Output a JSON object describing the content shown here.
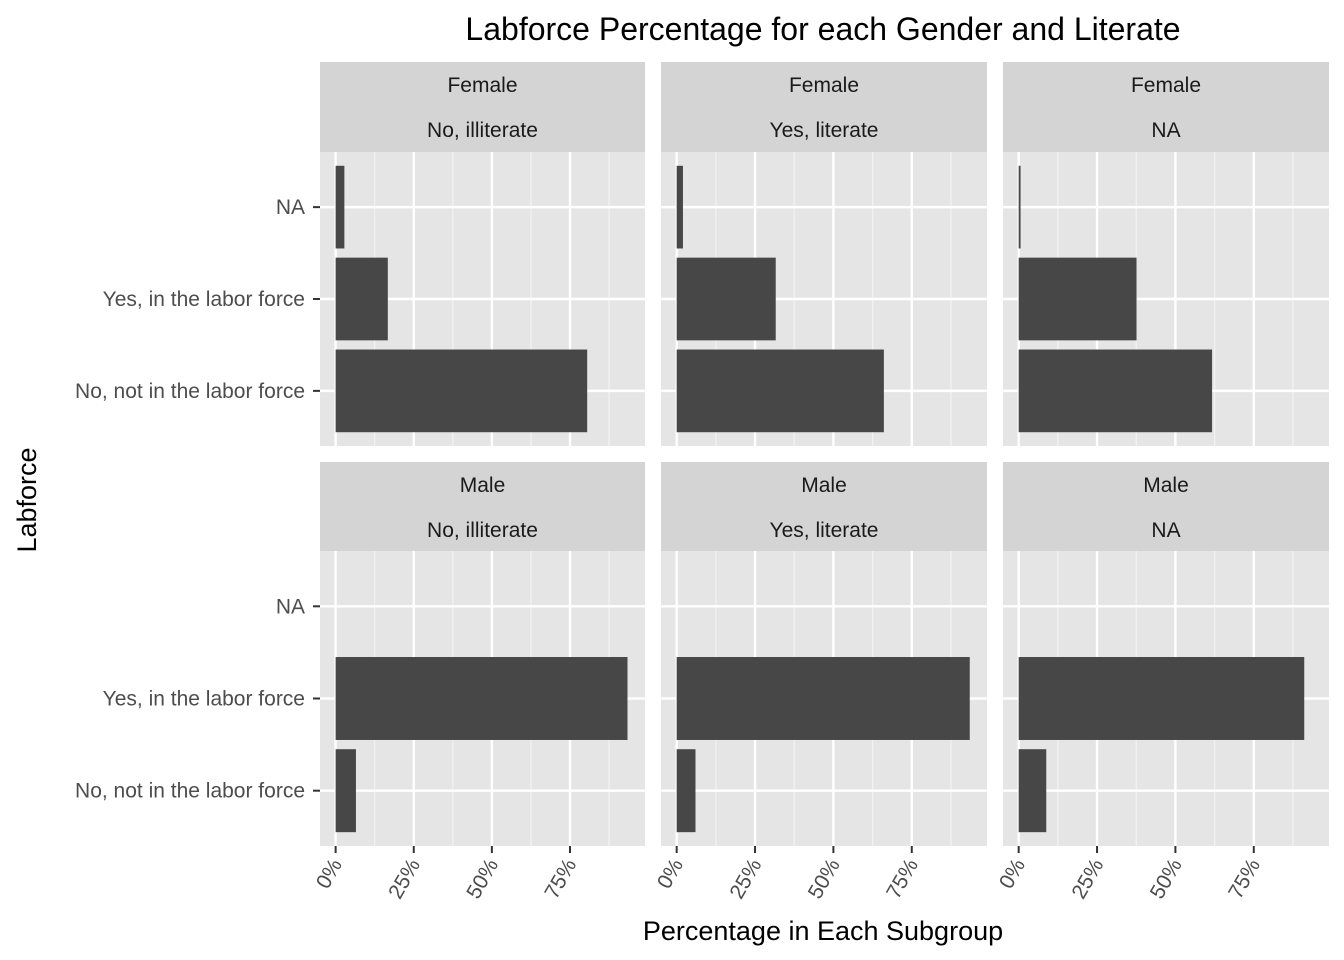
{
  "chart_data": {
    "type": "bar",
    "orientation": "horizontal",
    "title": "Labforce Percentage for each Gender and Literate",
    "xlabel": "Percentage in Each Subgroup",
    "ylabel": "Labforce",
    "xlim": [
      0,
      1
    ],
    "x_ticks": [
      {
        "value": 0,
        "label": "0%"
      },
      {
        "value": 0.25,
        "label": "25%"
      },
      {
        "value": 0.5,
        "label": "50%"
      },
      {
        "value": 0.75,
        "label": "75%"
      }
    ],
    "categories": [
      "No, not in the labor force",
      "Yes, in the labor force",
      "NA"
    ],
    "grid": true,
    "panels": [
      {
        "row_label": "Female",
        "col_label": "No, illiterate",
        "values": [
          0.805,
          0.167,
          0.028
        ]
      },
      {
        "row_label": "Female",
        "col_label": "Yes, literate",
        "values": [
          0.661,
          0.316,
          0.02
        ]
      },
      {
        "row_label": "Female",
        "col_label": "NA",
        "values": [
          0.617,
          0.376,
          0.006
        ]
      },
      {
        "row_label": "Male",
        "col_label": "No, illiterate",
        "values": [
          0.065,
          0.934,
          0.0
        ]
      },
      {
        "row_label": "Male",
        "col_label": "Yes, literate",
        "values": [
          0.06,
          0.935,
          0.0
        ]
      },
      {
        "row_label": "Male",
        "col_label": "NA",
        "values": [
          0.088,
          0.911,
          0.0
        ]
      }
    ],
    "colors": {
      "bar": "#474747",
      "panel_background": "#e5e5e5",
      "grid_major": "#ffffff",
      "strip_background": "#d4d4d4"
    }
  }
}
